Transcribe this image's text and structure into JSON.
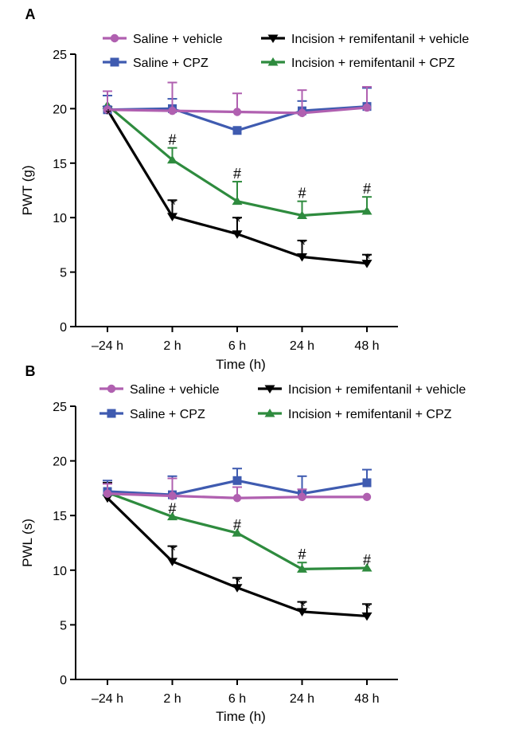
{
  "chart_data": [
    {
      "panel": "A",
      "type": "line",
      "xlabel": "Time (h)",
      "ylabel": "PWT (g)",
      "categories": [
        "–24 h",
        "2 h",
        "6 h",
        "24 h",
        "48 h"
      ],
      "ylim": [
        0,
        25
      ],
      "yticks": [
        0,
        5,
        10,
        15,
        20,
        25
      ],
      "grid": false,
      "legend_position": "top",
      "series": [
        {
          "name": "Saline + vehicle",
          "color": "#B060B0",
          "marker": "circle",
          "values": [
            19.9,
            19.8,
            19.7,
            19.6,
            20.1
          ],
          "err": [
            1.7,
            2.6,
            1.7,
            2.1,
            1.9
          ],
          "annotations": [
            "",
            "",
            "",
            "",
            ""
          ]
        },
        {
          "name": "Saline + CPZ",
          "color": "#3F5BB0",
          "marker": "square",
          "values": [
            19.9,
            20.0,
            18.0,
            19.8,
            20.2
          ],
          "err": [
            1.3,
            0.9,
            0,
            0.9,
            1.7
          ],
          "annotations": [
            "",
            "",
            "",
            "",
            ""
          ]
        },
        {
          "name": "Incision + remifentanil + vehicle",
          "color": "#000000",
          "marker": "triangle-down",
          "values": [
            19.9,
            10.1,
            8.5,
            6.4,
            5.8
          ],
          "err": [
            0,
            1.5,
            1.5,
            1.5,
            0.8
          ],
          "annotations": [
            "*",
            "*",
            "*",
            "*",
            "*"
          ]
        },
        {
          "name": "Incision + remifentanil + CPZ",
          "color": "#2E8B3E",
          "marker": "triangle-up",
          "values": [
            20.3,
            15.3,
            11.5,
            10.2,
            10.6
          ],
          "err": [
            0,
            1.1,
            1.8,
            1.3,
            1.3
          ],
          "annotations": [
            "",
            "#",
            "#",
            "#",
            "#"
          ]
        }
      ]
    },
    {
      "panel": "B",
      "type": "line",
      "xlabel": "Time (h)",
      "ylabel": "PWL (s)",
      "categories": [
        "–24 h",
        "2 h",
        "6 h",
        "24 h",
        "48 h"
      ],
      "ylim": [
        0,
        25
      ],
      "yticks": [
        0,
        5,
        10,
        15,
        20,
        25
      ],
      "grid": false,
      "legend_position": "top",
      "series": [
        {
          "name": "Saline + vehicle",
          "color": "#B060B0",
          "marker": "circle",
          "values": [
            17.0,
            16.8,
            16.6,
            16.7,
            16.7
          ],
          "err": [
            0.9,
            1.6,
            1.0,
            0.7,
            0
          ],
          "annotations": [
            "",
            "",
            "",
            "",
            ""
          ]
        },
        {
          "name": "Saline + CPZ",
          "color": "#3F5BB0",
          "marker": "square",
          "values": [
            17.2,
            16.9,
            18.2,
            17.0,
            18.0
          ],
          "err": [
            1.0,
            1.7,
            1.1,
            1.6,
            1.2
          ],
          "annotations": [
            "",
            "",
            "",
            "",
            ""
          ]
        },
        {
          "name": "Incision + remifentanil + vehicle",
          "color": "#000000",
          "marker": "triangle-down",
          "values": [
            16.6,
            10.8,
            8.4,
            6.2,
            5.8
          ],
          "err": [
            1.4,
            1.4,
            0.9,
            0.9,
            1.1
          ],
          "annotations": [
            "",
            "*",
            "*",
            "*",
            "*"
          ]
        },
        {
          "name": "Incision + remifentanil + CPZ",
          "color": "#2E8B3E",
          "marker": "triangle-up",
          "values": [
            17.1,
            14.9,
            13.4,
            10.1,
            10.2
          ],
          "err": [
            0,
            0,
            0,
            0.6,
            0
          ],
          "annotations": [
            "",
            "#",
            "#",
            "#",
            "#"
          ]
        }
      ]
    }
  ]
}
